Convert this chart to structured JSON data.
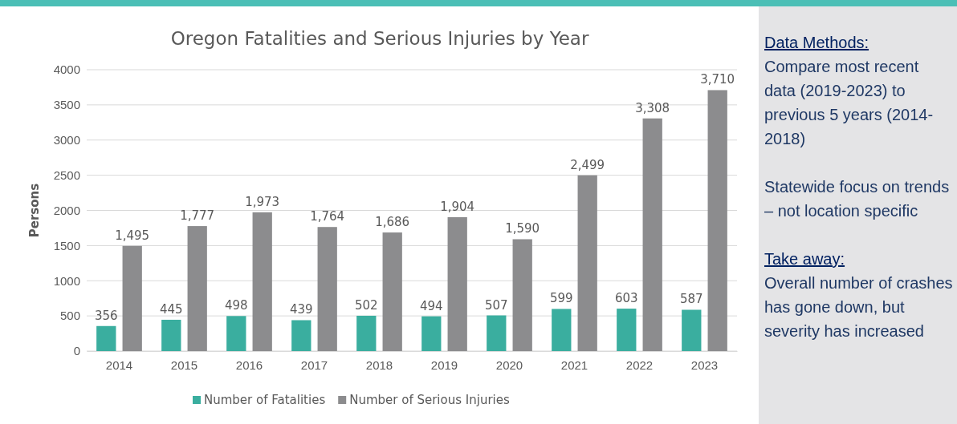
{
  "chart_data": {
    "type": "bar",
    "title": "Oregon Fatalities and Serious Injuries by Year",
    "ylabel": "Persons",
    "categories": [
      "2014",
      "2015",
      "2016",
      "2017",
      "2018",
      "2019",
      "2020",
      "2021",
      "2022",
      "2023"
    ],
    "series": [
      {
        "name": "Number of Fatalities",
        "color": "#3aae9f",
        "values": [
          356,
          445,
          498,
          439,
          502,
          494,
          507,
          599,
          603,
          587
        ],
        "value_labels": [
          "356",
          "445",
          "498",
          "439",
          "502",
          "494",
          "507",
          "599",
          "603",
          "587"
        ]
      },
      {
        "name": "Number of Serious Injuries",
        "color": "#8c8c8e",
        "values": [
          1495,
          1777,
          1973,
          1764,
          1686,
          1904,
          1590,
          2499,
          3308,
          3710
        ],
        "value_labels": [
          "1,495",
          "1,777",
          "1,973",
          "1,764",
          "1,686",
          "1,904",
          "1,590",
          "2,499",
          "3,308",
          "3,710"
        ]
      }
    ],
    "ylim": [
      0,
      4000
    ],
    "yticks": [
      0,
      500,
      1000,
      1500,
      2000,
      2500,
      3000,
      3500,
      4000
    ],
    "grid": "y",
    "legend": "bottom",
    "annotations": [
      "Data Methods:",
      "Compare most recent data (2019-2023) to previous 5 years (2014-2018)",
      "Statewide focus on trends – not location specific",
      "Take away:",
      "Overall number of crashes has gone down, but severity has increased"
    ]
  }
}
